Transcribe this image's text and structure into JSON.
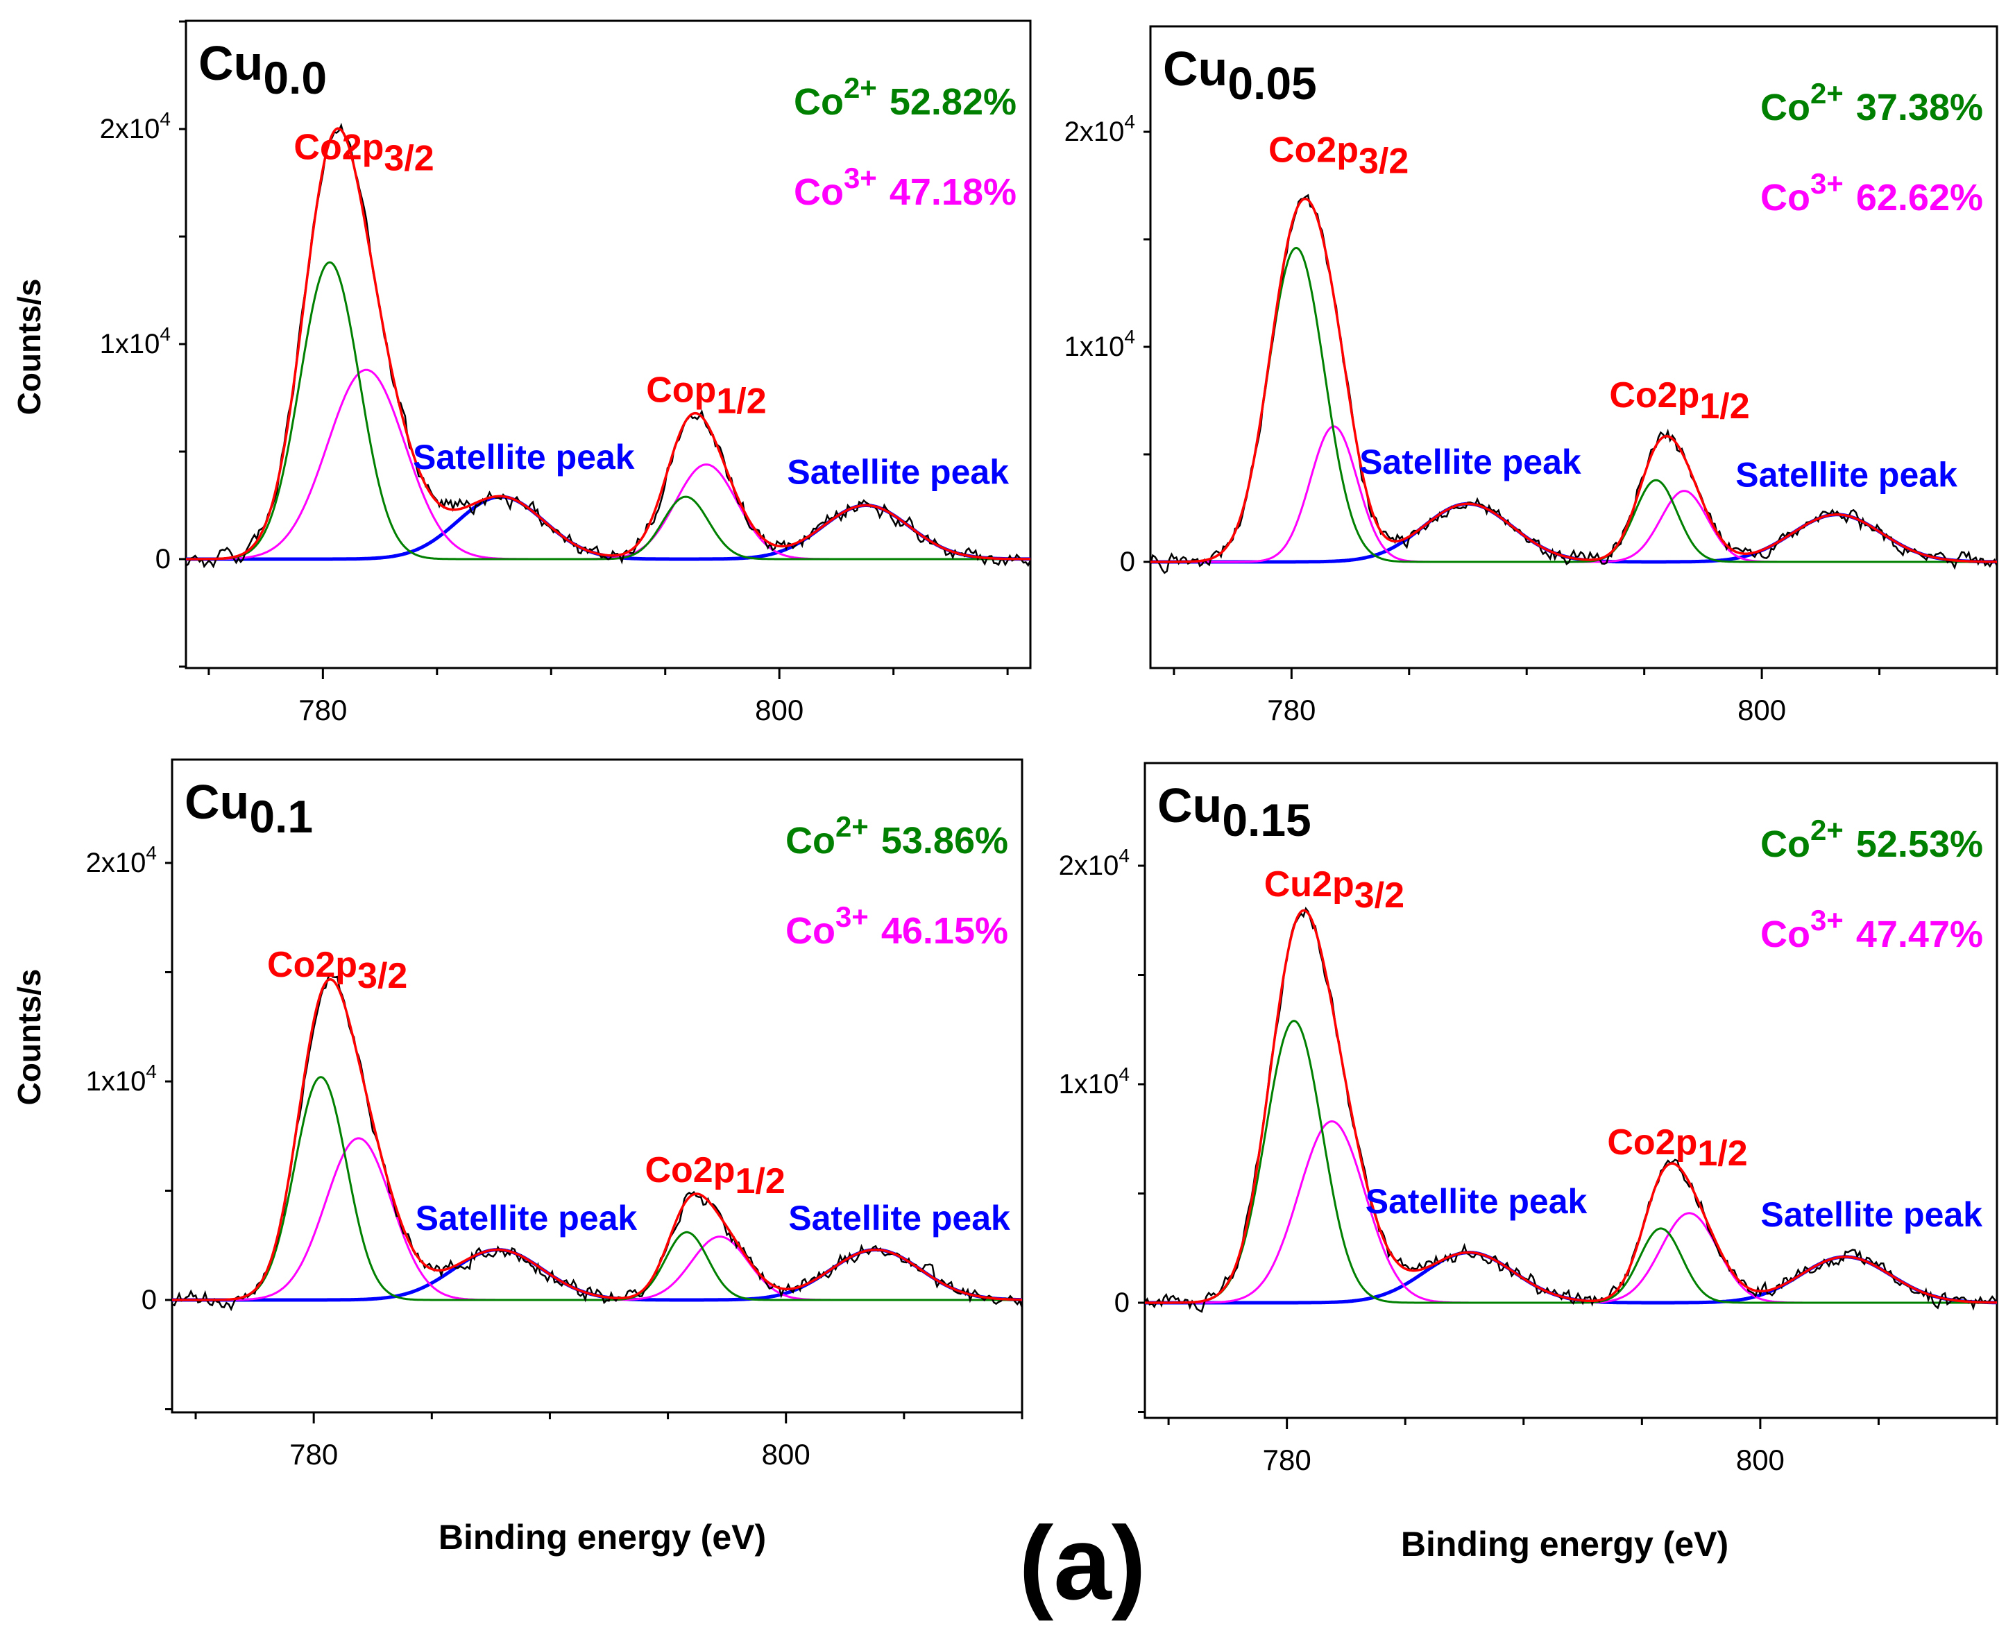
{
  "figure": {
    "label": "(a)",
    "ylabel": "Counts/s",
    "xlabel": "Binding energy (eV)"
  },
  "colors": {
    "raw": "#000000",
    "envelope": "#ff0000",
    "co2": "#008000",
    "co3": "#ff00ff",
    "baseline": "#0000ff",
    "peak_label": "#ff0000",
    "satellite_label": "#0000ff",
    "co2_text": "#008000",
    "co3_text": "#ff00ff"
  },
  "chart_data": [
    {
      "type": "line",
      "title_main": "Cu",
      "title_sub": "0.0",
      "xlim": [
        774,
        811
      ],
      "ylim": [
        -5000,
        25000
      ],
      "xticks": [
        780,
        800
      ],
      "yticks": [
        {
          "value": 0,
          "mant": "0",
          "exp": ""
        },
        {
          "value": 10000,
          "mant": "1x10",
          "exp": "4"
        },
        {
          "value": 20000,
          "mant": "2x10",
          "exp": "4"
        }
      ],
      "co2_label": {
        "base": "Co",
        "sup": "2+",
        "value": "52.82%"
      },
      "co3_label": {
        "base": "Co",
        "sup": "3+",
        "value": "47.18%"
      },
      "peak_labels": [
        {
          "base": "Co2p",
          "sub": "3/2",
          "x": 781.8,
          "y": 18600
        },
        {
          "base": "Cop",
          "sub": "1/2",
          "x": 796.8,
          "y": 7300
        }
      ],
      "satellite_labels": [
        {
          "text": "Satellite peak",
          "x": 788.8,
          "y": 4200
        },
        {
          "text": "Satellite peak",
          "x": 805.2,
          "y": 3500
        }
      ],
      "components": {
        "co2": [
          {
            "center": 780.3,
            "amp": 13800,
            "sigma": 1.3
          },
          {
            "center": 795.9,
            "amp": 2900,
            "sigma": 1.0
          }
        ],
        "co3": [
          {
            "center": 781.9,
            "amp": 8800,
            "sigma": 1.7
          },
          {
            "center": 796.8,
            "amp": 4400,
            "sigma": 1.35
          }
        ],
        "satellite": [
          {
            "center": 787.8,
            "amp": 2900,
            "sigma": 1.9
          },
          {
            "center": 803.8,
            "amp": 2500,
            "sigma": 1.9
          }
        ]
      }
    },
    {
      "type": "line",
      "title_main": "Cu",
      "title_sub": "0.05",
      "xlim": [
        774,
        810
      ],
      "ylim": [
        -5000,
        25000
      ],
      "xticks": [
        780,
        800
      ],
      "yticks": [
        {
          "value": 0,
          "mant": "0",
          "exp": ""
        },
        {
          "value": 10000,
          "mant": "1x10",
          "exp": "4"
        },
        {
          "value": 20000,
          "mant": "2x10",
          "exp": "4"
        }
      ],
      "co2_label": {
        "base": "Co",
        "sup": "2+",
        "value": "37.38%"
      },
      "co3_label": {
        "base": "Co",
        "sup": "3+",
        "value": "62.62%"
      },
      "peak_labels": [
        {
          "base": "Co2p",
          "sub": "3/2",
          "x": 782.0,
          "y": 18600
        },
        {
          "base": "Co2p",
          "sub": "1/2",
          "x": 796.5,
          "y": 7200
        }
      ],
      "satellite_labels": [
        {
          "text": "Satellite peak",
          "x": 787.6,
          "y": 4100
        },
        {
          "text": "Satellite peak",
          "x": 803.6,
          "y": 3500
        }
      ],
      "components": {
        "co2": [
          {
            "center": 780.2,
            "amp": 14600,
            "sigma": 1.2
          },
          {
            "center": 795.5,
            "amp": 3800,
            "sigma": 0.9
          }
        ],
        "co3": [
          {
            "center": 781.8,
            "amp": 6300,
            "sigma": 1.0
          },
          {
            "center": 796.7,
            "amp": 3300,
            "sigma": 1.0
          }
        ],
        "satellite": [
          {
            "center": 787.5,
            "amp": 2700,
            "sigma": 1.9
          },
          {
            "center": 803.2,
            "amp": 2200,
            "sigma": 1.9
          }
        ]
      }
    },
    {
      "type": "line",
      "title_main": "Cu",
      "title_sub": "0.1",
      "xlim": [
        774,
        810
      ],
      "ylim": [
        -5000,
        25000
      ],
      "xticks": [
        780,
        800
      ],
      "yticks": [
        {
          "value": 0,
          "mant": "0",
          "exp": ""
        },
        {
          "value": 10000,
          "mant": "1x10",
          "exp": "4"
        },
        {
          "value": 20000,
          "mant": "2x10",
          "exp": "4"
        }
      ],
      "co2_label": {
        "base": "Co",
        "sup": "2+",
        "value": "53.86%"
      },
      "co3_label": {
        "base": "Co",
        "sup": "3+",
        "value": "46.15%"
      },
      "peak_labels": [
        {
          "base": "Co2p",
          "sub": "3/2",
          "x": 781.0,
          "y": 14800
        },
        {
          "base": "Co2p",
          "sub": "1/2",
          "x": 797.0,
          "y": 5400
        }
      ],
      "satellite_labels": [
        {
          "text": "Satellite peak",
          "x": 789.0,
          "y": 3200
        },
        {
          "text": "Satellite peak",
          "x": 804.8,
          "y": 3200
        }
      ],
      "components": {
        "co2": [
          {
            "center": 780.3,
            "amp": 10200,
            "sigma": 1.1
          },
          {
            "center": 795.8,
            "amp": 3100,
            "sigma": 0.9
          }
        ],
        "co3": [
          {
            "center": 781.9,
            "amp": 7400,
            "sigma": 1.4
          },
          {
            "center": 797.2,
            "amp": 2900,
            "sigma": 1.2
          }
        ],
        "satellite": [
          {
            "center": 787.8,
            "amp": 2300,
            "sigma": 1.9
          },
          {
            "center": 803.8,
            "amp": 2300,
            "sigma": 1.9
          }
        ]
      }
    },
    {
      "type": "line",
      "title_main": "Cu",
      "title_sub": "0.15",
      "xlim": [
        774,
        810
      ],
      "ylim": [
        -5000,
        25000
      ],
      "xticks": [
        780,
        800
      ],
      "yticks": [
        {
          "value": 0,
          "mant": "0",
          "exp": ""
        },
        {
          "value": 10000,
          "mant": "1x10",
          "exp": "4"
        },
        {
          "value": 20000,
          "mant": "2x10",
          "exp": "4"
        }
      ],
      "co2_label": {
        "base": "Co",
        "sup": "2+",
        "value": "52.53%"
      },
      "co3_label": {
        "base": "Co",
        "sup": "3+",
        "value": "47.47%"
      },
      "peak_labels": [
        {
          "base": "Cu2p",
          "sub": "3/2",
          "x": 782.0,
          "y": 18600
        },
        {
          "base": "Co2p",
          "sub": "1/2",
          "x": 796.5,
          "y": 6800
        }
      ],
      "satellite_labels": [
        {
          "text": "Satellite peak",
          "x": 788.0,
          "y": 4100
        },
        {
          "text": "Satellite peak",
          "x": 804.7,
          "y": 3500
        }
      ],
      "components": {
        "co2": [
          {
            "center": 780.3,
            "amp": 12900,
            "sigma": 1.2
          },
          {
            "center": 795.8,
            "amp": 3400,
            "sigma": 0.9
          }
        ],
        "co3": [
          {
            "center": 781.9,
            "amp": 8300,
            "sigma": 1.4
          },
          {
            "center": 797.0,
            "amp": 4100,
            "sigma": 1.2
          }
        ],
        "satellite": [
          {
            "center": 787.7,
            "amp": 2300,
            "sigma": 1.9
          },
          {
            "center": 803.6,
            "amp": 2100,
            "sigma": 1.9
          }
        ]
      }
    }
  ]
}
